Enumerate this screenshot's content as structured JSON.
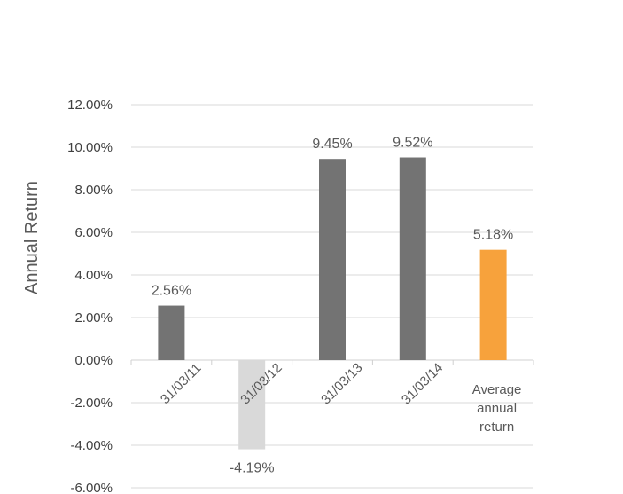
{
  "chart_data": {
    "type": "bar",
    "title": "",
    "xlabel": "",
    "ylabel": "Annual Return",
    "ylim": [
      -6,
      12
    ],
    "ytick_step": 2,
    "ytick_labels": [
      "-6.00%",
      "-4.00%",
      "-2.00%",
      "0.00%",
      "2.00%",
      "4.00%",
      "6.00%",
      "8.00%",
      "10.00%",
      "12.00%"
    ],
    "grid": true,
    "legend": "none",
    "categories": [
      "31/03/11",
      "31/03/12",
      "31/03/13",
      "31/03/14",
      "Average annual return"
    ],
    "category_label_lines": [
      [
        "31/03/11"
      ],
      [
        "31/03/12"
      ],
      [
        "31/03/13"
      ],
      [
        "31/03/14"
      ],
      [
        "Average",
        "annual",
        "return"
      ]
    ],
    "category_label_rotated": [
      true,
      true,
      true,
      true,
      false
    ],
    "values": [
      2.56,
      -4.19,
      9.45,
      9.52,
      5.18
    ],
    "data_labels": [
      "2.56%",
      "-4.19%",
      "9.45%",
      "9.52%",
      "5.18%"
    ],
    "bar_colors": [
      "#737373",
      "#d9d9d9",
      "#737373",
      "#737373",
      "#f7a23c"
    ]
  }
}
